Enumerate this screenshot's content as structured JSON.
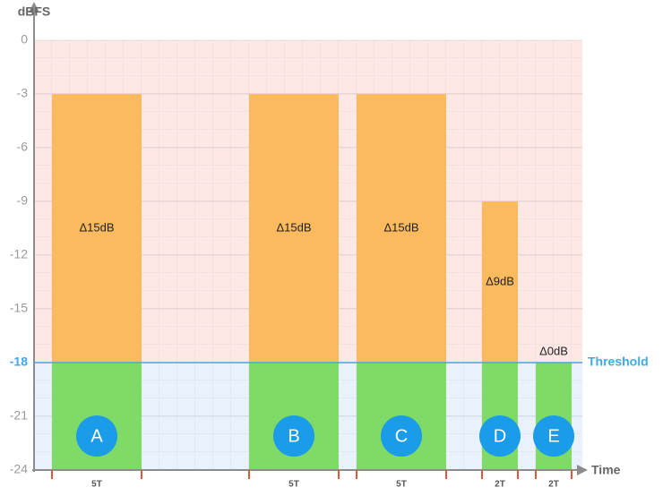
{
  "chart_data": {
    "type": "threshold-bars",
    "y_label": "dBFS",
    "x_label": "Time",
    "threshold": -18,
    "threshold_label": "Threshold",
    "ylim": [
      -24,
      0
    ],
    "yticks": [
      0,
      -3,
      -6,
      -9,
      -12,
      -15,
      -18,
      -21,
      -24
    ],
    "xlim": [
      0,
      30.6
    ],
    "grid": true,
    "colors": {
      "above": "#fbba5e",
      "below": "#7fda68",
      "marker": "#1b9ce8",
      "threshold": "#3ea9e2",
      "edge": "#e0583a"
    },
    "bars": [
      {
        "name": "A",
        "start": 1,
        "end": 6,
        "peak": -3,
        "delta_label": "Δ15dB",
        "duration_label": "5T"
      },
      {
        "name": "B",
        "start": 12,
        "end": 17,
        "peak": -3,
        "delta_label": "Δ15dB",
        "duration_label": "5T"
      },
      {
        "name": "C",
        "start": 18,
        "end": 23,
        "peak": -3,
        "delta_label": "Δ15dB",
        "duration_label": "5T"
      },
      {
        "name": "D",
        "start": 25,
        "end": 27,
        "peak": -9,
        "delta_label": "Δ9dB",
        "duration_label": "2T"
      },
      {
        "name": "E",
        "start": 28,
        "end": 30,
        "peak": -18,
        "delta_label": "Δ0dB",
        "duration_label": "2T"
      }
    ]
  }
}
